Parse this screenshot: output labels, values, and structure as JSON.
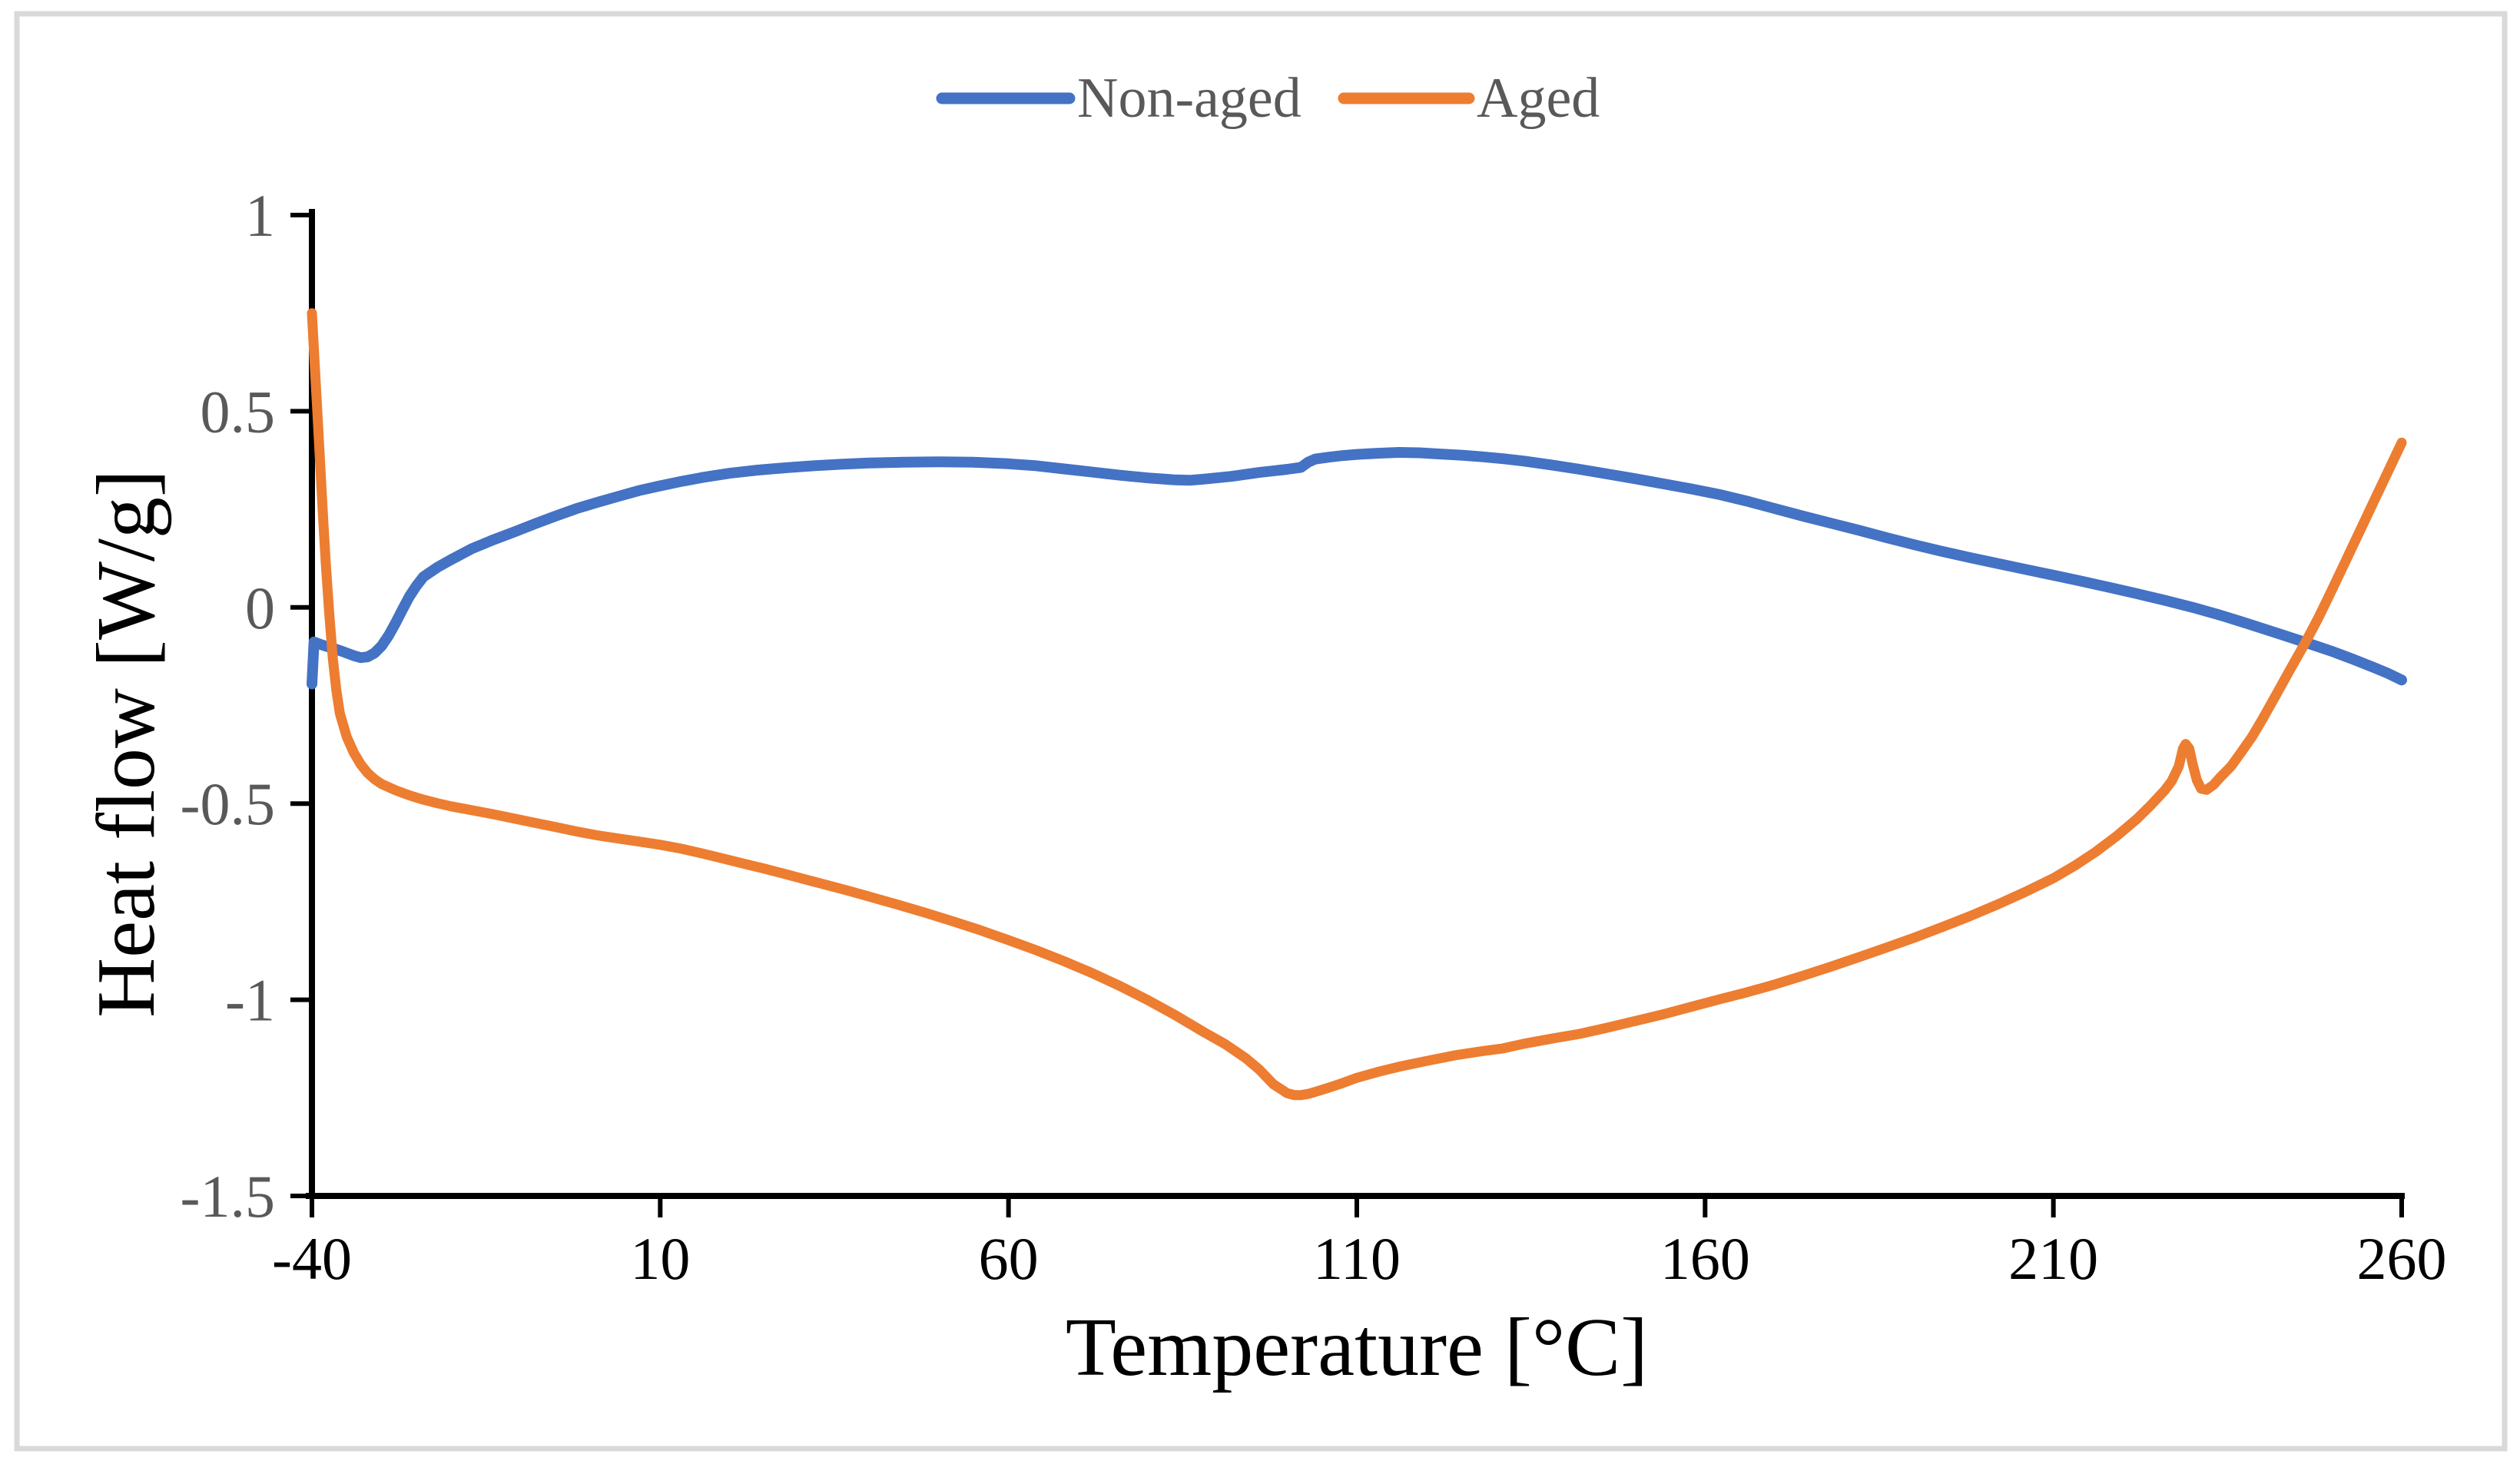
{
  "figure": {
    "background_color": "#FFFFFF",
    "border_color": "#D9D9D9"
  },
  "colors": {
    "axis": "#000000",
    "x_tick_label": "#000000",
    "y_tick_label": "#595959",
    "legend_text": "#595959",
    "non_aged_line": "#4472C4",
    "aged_line": "#ED7D31"
  },
  "chart_data": {
    "type": "line",
    "title": "",
    "xlabel": "Temperature [°C]",
    "ylabel": "Heat flow [W/g]",
    "xlim": [
      -40,
      260
    ],
    "ylim": [
      -1.5,
      1
    ],
    "grid": false,
    "legend_position": "top-center",
    "x_ticks": [
      {
        "value": -40,
        "label": "-40"
      },
      {
        "value": 10,
        "label": "10"
      },
      {
        "value": 60,
        "label": "60"
      },
      {
        "value": 110,
        "label": "110"
      },
      {
        "value": 160,
        "label": "160"
      },
      {
        "value": 210,
        "label": "210"
      },
      {
        "value": 260,
        "label": "260"
      }
    ],
    "y_ticks": [
      {
        "value": 1,
        "label": "1"
      },
      {
        "value": 0.5,
        "label": "0.5"
      },
      {
        "value": 0,
        "label": "0"
      },
      {
        "value": -0.5,
        "label": "-0.5"
      },
      {
        "value": -1,
        "label": "-1"
      },
      {
        "value": -1.5,
        "label": "-1.5"
      }
    ],
    "series": [
      {
        "name": "Non-aged",
        "color": "#4472C4",
        "stroke_width": 14,
        "points": [
          [
            -40,
            -0.195
          ],
          [
            -39.7,
            -0.088
          ],
          [
            -38.5,
            -0.096
          ],
          [
            -37,
            -0.104
          ],
          [
            -35.5,
            -0.113
          ],
          [
            -34,
            -0.123
          ],
          [
            -33,
            -0.128
          ],
          [
            -32,
            -0.126
          ],
          [
            -31,
            -0.116
          ],
          [
            -30,
            -0.098
          ],
          [
            -29,
            -0.072
          ],
          [
            -28,
            -0.04
          ],
          [
            -27,
            -0.005
          ],
          [
            -26,
            0.028
          ],
          [
            -25,
            0.055
          ],
          [
            -24,
            0.078
          ],
          [
            -22,
            0.102
          ],
          [
            -20,
            0.122
          ],
          [
            -17,
            0.15
          ],
          [
            -14,
            0.172
          ],
          [
            -11,
            0.192
          ],
          [
            -8,
            0.213
          ],
          [
            -5,
            0.233
          ],
          [
            -2,
            0.252
          ],
          [
            1,
            0.268
          ],
          [
            4,
            0.283
          ],
          [
            7,
            0.298
          ],
          [
            10,
            0.31
          ],
          [
            13,
            0.321
          ],
          [
            16,
            0.331
          ],
          [
            20,
            0.342
          ],
          [
            24,
            0.35
          ],
          [
            28,
            0.356
          ],
          [
            32,
            0.361
          ],
          [
            36,
            0.365
          ],
          [
            40,
            0.368
          ],
          [
            45,
            0.37
          ],
          [
            50,
            0.371
          ],
          [
            55,
            0.37
          ],
          [
            60,
            0.366
          ],
          [
            64,
            0.361
          ],
          [
            68,
            0.353
          ],
          [
            72,
            0.345
          ],
          [
            76,
            0.337
          ],
          [
            80,
            0.33
          ],
          [
            84,
            0.325
          ],
          [
            86,
            0.324
          ],
          [
            88,
            0.327
          ],
          [
            92,
            0.334
          ],
          [
            96,
            0.344
          ],
          [
            100,
            0.352
          ],
          [
            102,
            0.357
          ],
          [
            103,
            0.37
          ],
          [
            104,
            0.378
          ],
          [
            106,
            0.383
          ],
          [
            108,
            0.387
          ],
          [
            110,
            0.39
          ],
          [
            113,
            0.393
          ],
          [
            116,
            0.395
          ],
          [
            119,
            0.394
          ],
          [
            122,
            0.391
          ],
          [
            125,
            0.388
          ],
          [
            128,
            0.384
          ],
          [
            131,
            0.379
          ],
          [
            134,
            0.373
          ],
          [
            138,
            0.363
          ],
          [
            142,
            0.352
          ],
          [
            146,
            0.34
          ],
          [
            150,
            0.328
          ],
          [
            154,
            0.315
          ],
          [
            158,
            0.302
          ],
          [
            162,
            0.288
          ],
          [
            166,
            0.271
          ],
          [
            170,
            0.252
          ],
          [
            174,
            0.233
          ],
          [
            178,
            0.215
          ],
          [
            182,
            0.197
          ],
          [
            186,
            0.178
          ],
          [
            190,
            0.16
          ],
          [
            194,
            0.143
          ],
          [
            198,
            0.127
          ],
          [
            202,
            0.112
          ],
          [
            206,
            0.097
          ],
          [
            210,
            0.082
          ],
          [
            214,
            0.067
          ],
          [
            218,
            0.051
          ],
          [
            222,
            0.035
          ],
          [
            226,
            0.018
          ],
          [
            230,
            0.0
          ],
          [
            234,
            -0.02
          ],
          [
            238,
            -0.042
          ],
          [
            242,
            -0.065
          ],
          [
            246,
            -0.088
          ],
          [
            250,
            -0.112
          ],
          [
            253,
            -0.132
          ],
          [
            256,
            -0.153
          ],
          [
            258,
            -0.168
          ],
          [
            260,
            -0.185
          ]
        ]
      },
      {
        "name": "Aged",
        "color": "#ED7D31",
        "stroke_width": 13,
        "points": [
          [
            -40,
            0.75
          ],
          [
            -39.6,
            0.62
          ],
          [
            -39.2,
            0.49
          ],
          [
            -38.8,
            0.36
          ],
          [
            -38.4,
            0.23
          ],
          [
            -38,
            0.11
          ],
          [
            -37.5,
            -0.02
          ],
          [
            -37,
            -0.13
          ],
          [
            -36.5,
            -0.21
          ],
          [
            -36,
            -0.27
          ],
          [
            -35,
            -0.33
          ],
          [
            -34,
            -0.37
          ],
          [
            -33,
            -0.4
          ],
          [
            -32,
            -0.422
          ],
          [
            -31,
            -0.438
          ],
          [
            -30,
            -0.45
          ],
          [
            -28,
            -0.466
          ],
          [
            -26,
            -0.479
          ],
          [
            -24,
            -0.49
          ],
          [
            -22,
            -0.499
          ],
          [
            -20,
            -0.507
          ],
          [
            -17,
            -0.517
          ],
          [
            -14,
            -0.527
          ],
          [
            -11,
            -0.538
          ],
          [
            -8,
            -0.549
          ],
          [
            -5,
            -0.56
          ],
          [
            -2,
            -0.571
          ],
          [
            1,
            -0.581
          ],
          [
            4,
            -0.589
          ],
          [
            7,
            -0.597
          ],
          [
            10,
            -0.605
          ],
          [
            13,
            -0.615
          ],
          [
            16,
            -0.627
          ],
          [
            19,
            -0.64
          ],
          [
            22,
            -0.653
          ],
          [
            25,
            -0.666
          ],
          [
            28,
            -0.68
          ],
          [
            31,
            -0.694
          ],
          [
            34,
            -0.708
          ],
          [
            37,
            -0.722
          ],
          [
            40,
            -0.737
          ],
          [
            44,
            -0.757
          ],
          [
            48,
            -0.778
          ],
          [
            52,
            -0.8
          ],
          [
            56,
            -0.823
          ],
          [
            60,
            -0.848
          ],
          [
            64,
            -0.874
          ],
          [
            68,
            -0.902
          ],
          [
            72,
            -0.932
          ],
          [
            76,
            -0.965
          ],
          [
            80,
            -1.001
          ],
          [
            84,
            -1.04
          ],
          [
            88,
            -1.082
          ],
          [
            91,
            -1.112
          ],
          [
            94,
            -1.148
          ],
          [
            96,
            -1.178
          ],
          [
            98,
            -1.215
          ],
          [
            100,
            -1.238
          ],
          [
            101,
            -1.243
          ],
          [
            102,
            -1.243
          ],
          [
            103,
            -1.24
          ],
          [
            104,
            -1.235
          ],
          [
            106,
            -1.224
          ],
          [
            108,
            -1.212
          ],
          [
            110,
            -1.199
          ],
          [
            113,
            -1.184
          ],
          [
            116,
            -1.171
          ],
          [
            120,
            -1.156
          ],
          [
            124,
            -1.142
          ],
          [
            128,
            -1.131
          ],
          [
            131,
            -1.124
          ],
          [
            134,
            -1.112
          ],
          [
            138,
            -1.099
          ],
          [
            142,
            -1.087
          ],
          [
            146,
            -1.071
          ],
          [
            150,
            -1.054
          ],
          [
            154,
            -1.037
          ],
          [
            158,
            -1.018
          ],
          [
            162,
            -0.999
          ],
          [
            166,
            -0.981
          ],
          [
            170,
            -0.961
          ],
          [
            174,
            -0.939
          ],
          [
            178,
            -0.916
          ],
          [
            182,
            -0.892
          ],
          [
            186,
            -0.867
          ],
          [
            190,
            -0.842
          ],
          [
            194,
            -0.815
          ],
          [
            198,
            -0.787
          ],
          [
            202,
            -0.757
          ],
          [
            206,
            -0.725
          ],
          [
            210,
            -0.69
          ],
          [
            213,
            -0.659
          ],
          [
            216,
            -0.624
          ],
          [
            219,
            -0.584
          ],
          [
            222,
            -0.539
          ],
          [
            224,
            -0.504
          ],
          [
            226,
            -0.466
          ],
          [
            227,
            -0.442
          ],
          [
            228,
            -0.405
          ],
          [
            228.6,
            -0.36
          ],
          [
            229,
            -0.348
          ],
          [
            229.5,
            -0.36
          ],
          [
            230,
            -0.4
          ],
          [
            230.6,
            -0.44
          ],
          [
            231.2,
            -0.462
          ],
          [
            232,
            -0.465
          ],
          [
            233,
            -0.452
          ],
          [
            234,
            -0.432
          ],
          [
            235.5,
            -0.405
          ],
          [
            237,
            -0.368
          ],
          [
            238.5,
            -0.33
          ],
          [
            240,
            -0.285
          ],
          [
            242,
            -0.222
          ],
          [
            244,
            -0.158
          ],
          [
            246,
            -0.095
          ],
          [
            248,
            -0.028
          ],
          [
            250,
            0.045
          ],
          [
            252,
            0.12
          ],
          [
            254,
            0.195
          ],
          [
            256,
            0.27
          ],
          [
            258,
            0.345
          ],
          [
            260,
            0.42
          ]
        ]
      }
    ]
  }
}
